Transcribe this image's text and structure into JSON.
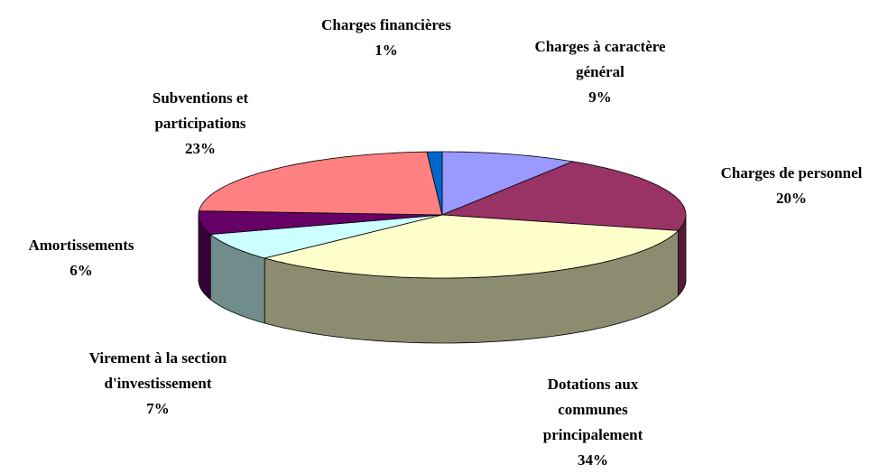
{
  "chart_data": {
    "type": "pie3d",
    "categories": [
      "Charges à caractère général",
      "Charges de personnel",
      "Dotations aux communes principalement",
      "Virement à la section d'investissement",
      "Amortissements",
      "Subventions et participations",
      "Charges financières"
    ],
    "values": [
      9,
      20,
      34,
      7,
      6,
      23,
      1
    ],
    "value_labels": [
      "9%",
      "20%",
      "34%",
      "7%",
      "6%",
      "23%",
      "1%"
    ],
    "colors": [
      "#9999ff",
      "#993366",
      "#ffffcc",
      "#ccffff",
      "#660066",
      "#ff8080",
      "#0066cc"
    ]
  }
}
